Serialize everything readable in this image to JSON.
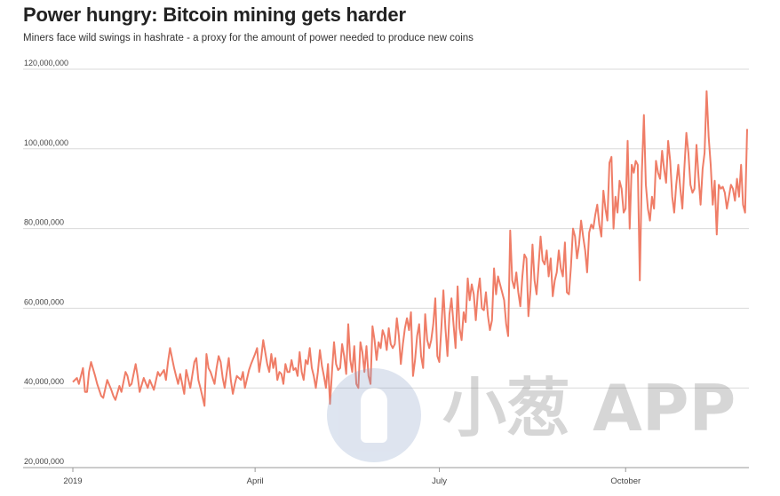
{
  "header": {
    "title": "Power hungry: Bitcoin mining gets harder",
    "subtitle": "Miners face wild swings in hashrate - a proxy for the amount of power needed to produce new coins"
  },
  "watermark": {
    "text": "小葱 APP",
    "icon": "scallion-logo-icon"
  },
  "colors": {
    "line": "#ef7d67",
    "grid": "#d9d9d9",
    "axis": "#999999"
  },
  "chart_data": {
    "type": "line",
    "title": "Power hungry: Bitcoin mining gets harder",
    "subtitle": "Miners face wild swings in hashrate - a proxy for the amount of power needed to produce new coins",
    "xlabel": "",
    "ylabel": "",
    "ylim": [
      20000000,
      120000000
    ],
    "y_ticks": [
      {
        "value": 20000000,
        "label": "20,000,000"
      },
      {
        "value": 40000000,
        "label": "40,000,000"
      },
      {
        "value": 60000000,
        "label": "60,000,000"
      },
      {
        "value": 80000000,
        "label": "80,000,000"
      },
      {
        "value": 100000000,
        "label": "100,000,000"
      },
      {
        "value": 120000000,
        "label": "120,000,000"
      }
    ],
    "x_ticks": [
      {
        "day": 0,
        "label": "2019"
      },
      {
        "day": 90,
        "label": "April"
      },
      {
        "day": 181,
        "label": "July"
      },
      {
        "day": 273,
        "label": "October"
      }
    ],
    "x_domain": [
      0,
      333
    ],
    "grid": true,
    "legend": "none",
    "series": [
      {
        "points": [
          [
            0,
            41.5
          ],
          [
            2,
            42.5
          ],
          [
            3,
            41.0
          ],
          [
            5,
            45.0
          ],
          [
            6,
            39.0
          ],
          [
            7,
            39.0
          ],
          [
            8,
            44.0
          ],
          [
            9,
            46.5
          ],
          [
            11,
            43.0
          ],
          [
            12,
            41.0
          ],
          [
            14,
            38.0
          ],
          [
            15,
            37.5
          ],
          [
            17,
            42.0
          ],
          [
            19,
            39.5
          ],
          [
            20,
            38.0
          ],
          [
            21,
            37.0
          ],
          [
            23,
            40.5
          ],
          [
            24,
            39.0
          ],
          [
            26,
            44.0
          ],
          [
            27,
            43.0
          ],
          [
            28,
            40.5
          ],
          [
            29,
            41.0
          ],
          [
            31,
            46.0
          ],
          [
            32,
            43.0
          ],
          [
            33,
            39.0
          ],
          [
            35,
            42.5
          ],
          [
            37,
            40.0
          ],
          [
            38,
            42.0
          ],
          [
            40,
            39.5
          ],
          [
            42,
            44.0
          ],
          [
            43,
            43.0
          ],
          [
            45,
            44.5
          ],
          [
            46,
            42.0
          ],
          [
            47,
            46.5
          ],
          [
            48,
            50.0
          ],
          [
            50,
            45.0
          ],
          [
            51,
            43.0
          ],
          [
            52,
            41.0
          ],
          [
            53,
            43.5
          ],
          [
            55,
            38.5
          ],
          [
            56,
            44.5
          ],
          [
            58,
            40.0
          ],
          [
            60,
            46.5
          ],
          [
            61,
            47.5
          ],
          [
            62,
            42.0
          ],
          [
            63,
            40.0
          ],
          [
            65,
            35.5
          ],
          [
            66,
            48.5
          ],
          [
            67,
            45.0
          ],
          [
            68,
            44.0
          ],
          [
            70,
            41.0
          ],
          [
            71,
            45.0
          ],
          [
            72,
            48.0
          ],
          [
            73,
            46.5
          ],
          [
            74,
            42.5
          ],
          [
            75,
            40.0
          ],
          [
            77,
            47.5
          ],
          [
            78,
            42.0
          ],
          [
            79,
            38.5
          ],
          [
            80,
            41.0
          ],
          [
            81,
            43.0
          ],
          [
            83,
            42.0
          ],
          [
            84,
            44.0
          ],
          [
            85,
            40.0
          ],
          [
            87,
            44.5
          ],
          [
            88,
            46.0
          ],
          [
            90,
            48.5
          ],
          [
            91,
            50.0
          ],
          [
            92,
            44.0
          ],
          [
            93,
            47.5
          ],
          [
            94,
            52.0
          ],
          [
            96,
            46.0
          ],
          [
            97,
            44.0
          ],
          [
            98,
            48.5
          ],
          [
            99,
            45.0
          ],
          [
            100,
            47.5
          ],
          [
            101,
            42.0
          ],
          [
            102,
            44.0
          ],
          [
            103,
            43.5
          ],
          [
            104,
            41.0
          ],
          [
            105,
            46.0
          ],
          [
            106,
            44.0
          ],
          [
            107,
            44.0
          ],
          [
            108,
            47.0
          ],
          [
            109,
            44.5
          ],
          [
            110,
            45.0
          ],
          [
            111,
            43.0
          ],
          [
            112,
            49.0
          ],
          [
            113,
            44.0
          ],
          [
            114,
            42.0
          ],
          [
            115,
            47.0
          ],
          [
            116,
            46.0
          ],
          [
            117,
            50.0
          ],
          [
            118,
            45.0
          ],
          [
            119,
            43.0
          ],
          [
            120,
            40.0
          ],
          [
            121,
            44.0
          ],
          [
            122,
            49.5
          ],
          [
            123,
            45.5
          ],
          [
            124,
            43.0
          ],
          [
            125,
            40.0
          ],
          [
            126,
            46.0
          ],
          [
            127,
            36.0
          ],
          [
            128,
            44.0
          ],
          [
            129,
            51.5
          ],
          [
            130,
            46.0
          ],
          [
            131,
            44.5
          ],
          [
            132,
            45.0
          ],
          [
            133,
            51.0
          ],
          [
            134,
            48.0
          ],
          [
            135,
            43.5
          ],
          [
            136,
            56.0
          ],
          [
            137,
            47.0
          ],
          [
            138,
            44.0
          ],
          [
            139,
            50.5
          ],
          [
            140,
            41.0
          ],
          [
            141,
            40.0
          ],
          [
            142,
            51.5
          ],
          [
            143,
            49.0
          ],
          [
            144,
            44.0
          ],
          [
            145,
            50.5
          ],
          [
            146,
            43.0
          ],
          [
            147,
            41.0
          ],
          [
            148,
            55.5
          ],
          [
            149,
            52.0
          ],
          [
            150,
            47.0
          ],
          [
            151,
            51.5
          ],
          [
            152,
            50.0
          ],
          [
            153,
            54.5
          ],
          [
            154,
            53.0
          ],
          [
            155,
            49.5
          ],
          [
            156,
            55.0
          ],
          [
            157,
            51.0
          ],
          [
            158,
            50.0
          ],
          [
            159,
            51.0
          ],
          [
            160,
            57.5
          ],
          [
            161,
            53.0
          ],
          [
            162,
            46.0
          ],
          [
            163,
            51.0
          ],
          [
            164,
            55.0
          ],
          [
            165,
            57.5
          ],
          [
            166,
            54.5
          ],
          [
            167,
            59.0
          ],
          [
            168,
            43.0
          ],
          [
            169,
            47.0
          ],
          [
            170,
            53.0
          ],
          [
            171,
            56.0
          ],
          [
            172,
            48.0
          ],
          [
            173,
            45.0
          ],
          [
            174,
            58.5
          ],
          [
            175,
            52.0
          ],
          [
            176,
            50.0
          ],
          [
            177,
            52.0
          ],
          [
            178,
            56.0
          ],
          [
            179,
            62.5
          ],
          [
            180,
            48.0
          ],
          [
            181,
            46.5
          ],
          [
            182,
            55.0
          ],
          [
            183,
            64.5
          ],
          [
            184,
            55.0
          ],
          [
            185,
            48.0
          ],
          [
            186,
            58.5
          ],
          [
            187,
            62.5
          ],
          [
            188,
            56.0
          ],
          [
            189,
            50.0
          ],
          [
            190,
            65.5
          ],
          [
            191,
            55.0
          ],
          [
            192,
            52.0
          ],
          [
            193,
            59.0
          ],
          [
            194,
            56.5
          ],
          [
            195,
            67.5
          ],
          [
            196,
            62.0
          ],
          [
            197,
            66.0
          ],
          [
            198,
            63.5
          ],
          [
            199,
            57.0
          ],
          [
            200,
            64.0
          ],
          [
            201,
            67.5
          ],
          [
            202,
            60.0
          ],
          [
            203,
            59.5
          ],
          [
            204,
            64.0
          ],
          [
            205,
            58.0
          ],
          [
            206,
            54.5
          ],
          [
            207,
            57.0
          ],
          [
            208,
            70.0
          ],
          [
            209,
            63.5
          ],
          [
            210,
            68.0
          ],
          [
            211,
            66.0
          ],
          [
            212,
            64.0
          ],
          [
            213,
            62.0
          ],
          [
            214,
            56.0
          ],
          [
            215,
            53.0
          ],
          [
            216,
            79.5
          ],
          [
            217,
            67.0
          ],
          [
            218,
            65.0
          ],
          [
            219,
            69.0
          ],
          [
            220,
            64.0
          ],
          [
            221,
            60.5
          ],
          [
            222,
            68.0
          ],
          [
            223,
            73.5
          ],
          [
            224,
            72.5
          ],
          [
            225,
            58.0
          ],
          [
            226,
            64.5
          ],
          [
            227,
            76.0
          ],
          [
            228,
            67.0
          ],
          [
            229,
            63.5
          ],
          [
            230,
            70.5
          ],
          [
            231,
            78.0
          ],
          [
            232,
            72.0
          ],
          [
            233,
            71.0
          ],
          [
            234,
            74.5
          ],
          [
            235,
            68.0
          ],
          [
            236,
            72.5
          ],
          [
            237,
            63.0
          ],
          [
            238,
            67.0
          ],
          [
            239,
            69.0
          ],
          [
            240,
            74.5
          ],
          [
            241,
            70.0
          ],
          [
            242,
            68.0
          ],
          [
            243,
            76.5
          ],
          [
            244,
            64.0
          ],
          [
            245,
            63.5
          ],
          [
            246,
            70.5
          ],
          [
            247,
            80.0
          ],
          [
            248,
            78.0
          ],
          [
            249,
            72.5
          ],
          [
            250,
            76.0
          ],
          [
            251,
            82.0
          ],
          [
            252,
            78.0
          ],
          [
            253,
            74.5
          ],
          [
            254,
            69.0
          ],
          [
            255,
            79.0
          ],
          [
            256,
            81.0
          ],
          [
            257,
            80.0
          ],
          [
            258,
            83.5
          ],
          [
            259,
            86.0
          ],
          [
            260,
            81.0
          ],
          [
            261,
            78.0
          ],
          [
            262,
            89.5
          ],
          [
            263,
            85.0
          ],
          [
            264,
            82.0
          ],
          [
            265,
            96.5
          ],
          [
            266,
            98.0
          ],
          [
            267,
            80.0
          ],
          [
            268,
            88.0
          ],
          [
            269,
            84.0
          ],
          [
            270,
            92.0
          ],
          [
            271,
            90.0
          ],
          [
            272,
            84.0
          ],
          [
            273,
            85.0
          ],
          [
            274,
            102.0
          ],
          [
            275,
            80.0
          ],
          [
            276,
            96.0
          ],
          [
            277,
            94.0
          ],
          [
            278,
            97.0
          ],
          [
            279,
            96.0
          ],
          [
            280,
            67.0
          ],
          [
            281,
            94.0
          ],
          [
            282,
            108.5
          ],
          [
            283,
            91.0
          ],
          [
            284,
            85.0
          ],
          [
            285,
            82.0
          ],
          [
            286,
            88.0
          ],
          [
            287,
            85.0
          ],
          [
            288,
            97.0
          ],
          [
            289,
            94.0
          ],
          [
            290,
            92.5
          ],
          [
            291,
            99.5
          ],
          [
            292,
            95.0
          ],
          [
            293,
            91.5
          ],
          [
            294,
            102.0
          ],
          [
            295,
            97.0
          ],
          [
            296,
            88.0
          ],
          [
            297,
            84.0
          ],
          [
            298,
            91.0
          ],
          [
            299,
            96.0
          ],
          [
            300,
            90.0
          ],
          [
            301,
            85.0
          ],
          [
            302,
            95.0
          ],
          [
            303,
            104.0
          ],
          [
            304,
            99.0
          ],
          [
            305,
            91.0
          ],
          [
            306,
            89.0
          ],
          [
            307,
            90.0
          ],
          [
            308,
            101.0
          ],
          [
            309,
            93.0
          ],
          [
            310,
            86.0
          ],
          [
            311,
            95.0
          ],
          [
            312,
            99.0
          ],
          [
            313,
            114.5
          ],
          [
            314,
            103.0
          ],
          [
            315,
            96.0
          ],
          [
            316,
            86.0
          ],
          [
            317,
            92.0
          ],
          [
            318,
            78.5
          ],
          [
            319,
            91.0
          ],
          [
            320,
            90.0
          ],
          [
            321,
            90.5
          ],
          [
            322,
            89.0
          ],
          [
            323,
            85.0
          ],
          [
            324,
            88.0
          ],
          [
            325,
            91.0
          ],
          [
            326,
            90.0
          ],
          [
            327,
            87.0
          ],
          [
            328,
            92.5
          ],
          [
            329,
            88.0
          ],
          [
            330,
            96.0
          ],
          [
            331,
            86.0
          ],
          [
            332,
            84.0
          ],
          [
            333,
            105.0
          ]
        ]
      }
    ]
  }
}
